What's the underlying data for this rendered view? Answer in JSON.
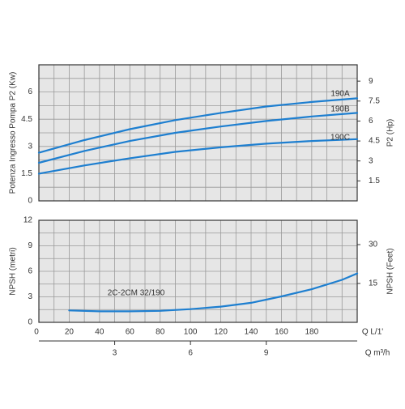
{
  "colors": {
    "background": "#ffffff",
    "plot_background": "#e6e6e6",
    "grid": "#9a9a9a",
    "frame": "#333333",
    "curve": "#1e7fd0",
    "text": "#333333"
  },
  "chart_data": [
    {
      "type": "line",
      "panel": "power",
      "ylabel": "Potenza Ingresso Pompa P2 (Kw)",
      "y2label": "P2 (Hp)",
      "xlim": [
        0,
        210
      ],
      "ylim": [
        0,
        7.5
      ],
      "yticks": [
        0,
        1.5,
        3,
        4.5,
        6
      ],
      "y2ticks": [
        {
          "value": 1.1,
          "label": "1.5"
        },
        {
          "value": 2.2,
          "label": "3"
        },
        {
          "value": 3.3,
          "label": "4.5"
        },
        {
          "value": 4.4,
          "label": "6"
        },
        {
          "value": 5.5,
          "label": "7.5"
        },
        {
          "value": 6.6,
          "label": "9"
        }
      ],
      "grid": true,
      "series": [
        {
          "name": "190A",
          "x": [
            0,
            30,
            60,
            90,
            120,
            150,
            180,
            210
          ],
          "y": [
            2.65,
            3.35,
            3.95,
            4.45,
            4.85,
            5.2,
            5.45,
            5.65
          ]
        },
        {
          "name": "190B",
          "x": [
            0,
            30,
            60,
            90,
            120,
            150,
            180,
            210
          ],
          "y": [
            2.1,
            2.75,
            3.3,
            3.75,
            4.1,
            4.4,
            4.65,
            4.85
          ]
        },
        {
          "name": "190C",
          "x": [
            0,
            30,
            60,
            90,
            120,
            150,
            180,
            210
          ],
          "y": [
            1.5,
            1.95,
            2.35,
            2.7,
            2.95,
            3.15,
            3.3,
            3.4
          ]
        }
      ]
    },
    {
      "type": "line",
      "panel": "npsh",
      "ylabel": "NPSH (metri)",
      "y2label": "NPSH (Feet)",
      "xlabel": "Q L/1'",
      "x2label": "Q m³/h",
      "xlim": [
        0,
        210
      ],
      "ylim": [
        0,
        12
      ],
      "yticks": [
        0,
        3,
        6,
        9,
        12
      ],
      "y2ticks": [
        {
          "value": 4.57,
          "label": "15"
        },
        {
          "value": 9.14,
          "label": "30"
        }
      ],
      "xticks": [
        0,
        20,
        40,
        60,
        80,
        100,
        120,
        140,
        160,
        180
      ],
      "x2ticks": [
        {
          "value": 50,
          "label": "3"
        },
        {
          "value": 100,
          "label": "6"
        },
        {
          "value": 150,
          "label": "9"
        }
      ],
      "grid": true,
      "series": [
        {
          "name": "2C-2CM 32/190",
          "x": [
            20,
            40,
            60,
            80,
            100,
            120,
            140,
            160,
            180,
            200,
            210
          ],
          "y": [
            1.4,
            1.3,
            1.3,
            1.35,
            1.55,
            1.85,
            2.3,
            3.05,
            3.9,
            5.0,
            5.75
          ]
        }
      ]
    }
  ]
}
